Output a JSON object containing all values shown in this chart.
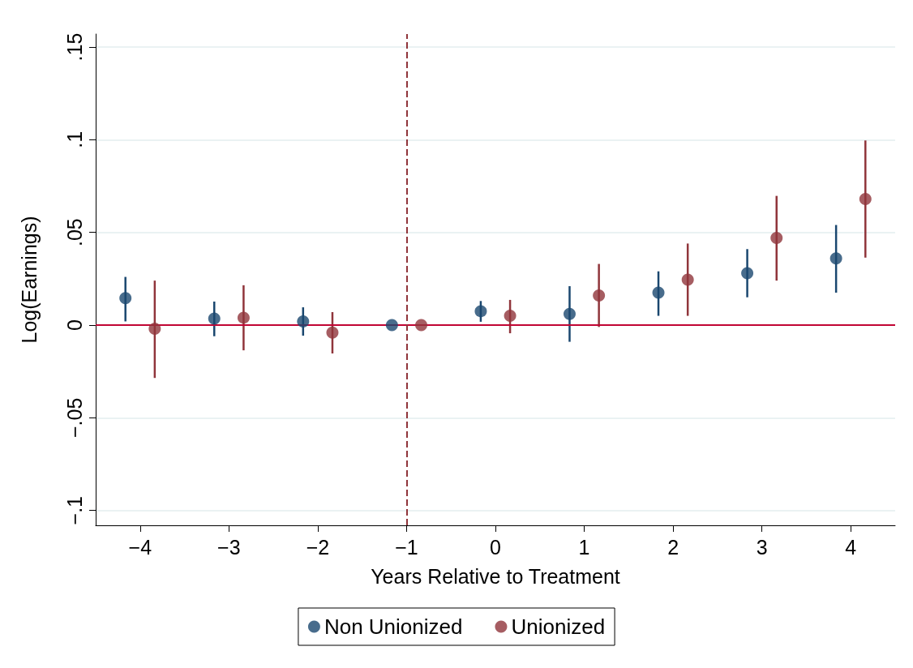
{
  "chart_data": {
    "type": "scatter",
    "xlabel": "Years Relative to Treatment",
    "ylabel": "Log(Earnings)",
    "xlim": [
      -4.5,
      4.5
    ],
    "ylim": [
      -0.108,
      0.157
    ],
    "xticks": [
      {
        "value": -4,
        "label": "−4"
      },
      {
        "value": -3,
        "label": "−3"
      },
      {
        "value": -2,
        "label": "−2"
      },
      {
        "value": -1,
        "label": "−1"
      },
      0,
      1,
      2,
      3,
      4
    ],
    "yticks": [
      {
        "value": -0.1,
        "label": "−.1"
      },
      {
        "value": -0.05,
        "label": "−.05"
      },
      0,
      {
        "value": 0.05,
        "label": ".05"
      },
      {
        "value": 0.1,
        "label": ".1"
      },
      {
        "value": 0.15,
        "label": ".15"
      }
    ],
    "grid": "y",
    "legend": "bottom",
    "marker": "circle",
    "series": [
      {
        "name": "Non Unionized",
        "color": "#1a476f",
        "x": [
          -4.165,
          -3.165,
          -2.165,
          -1.165,
          -0.165,
          0.835,
          1.835,
          2.835,
          3.835
        ],
        "values": [
          0.0145,
          0.0035,
          0.002,
          0,
          0.0075,
          0.006,
          0.0175,
          0.028,
          0.036
        ],
        "errors": [
          [
            0.002,
            0.026
          ],
          [
            -0.006,
            0.0127
          ],
          [
            -0.0057,
            0.0096
          ],
          null,
          [
            0.0018,
            0.013
          ],
          [
            -0.009,
            0.021
          ],
          [
            0.005,
            0.029
          ],
          [
            0.015,
            0.041
          ],
          [
            0.0175,
            0.054
          ]
        ]
      },
      {
        "name": "Unionized",
        "color": "#90353b",
        "x": [
          -3.835,
          -2.835,
          -1.835,
          -0.835,
          0.165,
          1.165,
          2.165,
          3.165,
          4.165
        ],
        "values": [
          -0.002,
          0.004,
          -0.004,
          0,
          0.005,
          0.016,
          0.0245,
          0.047,
          0.068
        ],
        "errors": [
          [
            -0.0285,
            0.024
          ],
          [
            -0.0136,
            0.0215
          ],
          [
            -0.0153,
            0.007
          ],
          null,
          [
            -0.0044,
            0.0136
          ],
          [
            -0.001,
            0.033
          ],
          [
            0.005,
            0.044
          ],
          [
            0.024,
            0.0697
          ],
          [
            0.0364,
            0.0996
          ]
        ]
      }
    ],
    "ref_lines": [
      {
        "axis": "y",
        "value": 0,
        "color": "#c10534",
        "line_style": "solid"
      },
      {
        "axis": "x",
        "value": -1,
        "color": "#90353b",
        "line_style": "dashed"
      }
    ]
  }
}
